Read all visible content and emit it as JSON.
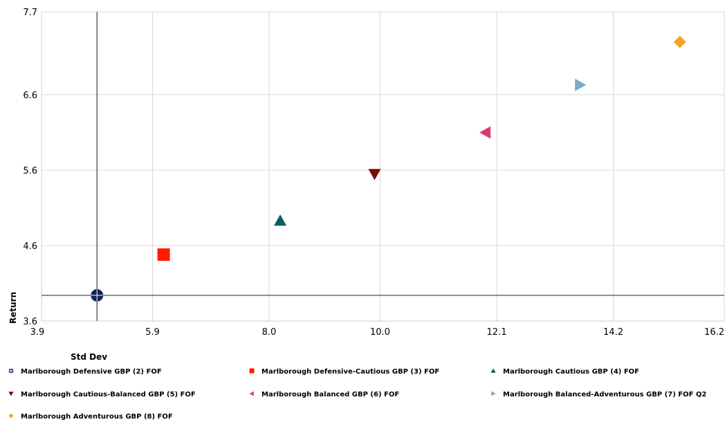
{
  "chart_data": {
    "type": "scatter",
    "xlabel": "Std Dev",
    "ylabel": "Return",
    "xlim": [
      3.9,
      16.2
    ],
    "ylim": [
      3.6,
      7.7
    ],
    "x_ticks": [
      "3.9",
      "5.9",
      "8.0",
      "10.0",
      "12.1",
      "14.2",
      "16.2"
    ],
    "y_ticks": [
      "3.6",
      "4.6",
      "5.6",
      "6.6",
      "7.7"
    ],
    "grid": true,
    "legend_position": "bottom",
    "reference_lines": {
      "x": 4.9,
      "y": 3.94
    },
    "series": [
      {
        "name": "Marlborough Defensive GBP (2) FOF",
        "x": 4.9,
        "y": 3.94,
        "marker": "circle-cross",
        "color": "#13235b"
      },
      {
        "name": "Marlborough Defensive-Cautious GBP (3) FOF",
        "x": 6.1,
        "y": 4.48,
        "marker": "square",
        "color": "#ff1a00"
      },
      {
        "name": "Marlborough Cautious GBP (4) FOF",
        "x": 8.2,
        "y": 4.93,
        "marker": "triangle-up",
        "color": "#0b5e61"
      },
      {
        "name": "Marlborough Cautious-Balanced GBP (5) FOF",
        "x": 9.9,
        "y": 5.55,
        "marker": "triangle-down",
        "color": "#7b0a0a"
      },
      {
        "name": "Marlborough Balanced GBP (6) FOF",
        "x": 11.9,
        "y": 6.1,
        "marker": "triangle-left",
        "color": "#d63c76"
      },
      {
        "name": "Marlborough Balanced-Adventurous GBP (7) FOF Q2",
        "x": 13.6,
        "y": 6.73,
        "marker": "triangle-right",
        "color": "#7aaac8"
      },
      {
        "name": "Marlborough Adventurous GBP (8) FOF",
        "x": 15.4,
        "y": 7.3,
        "marker": "diamond",
        "color": "#f5a623"
      }
    ]
  }
}
